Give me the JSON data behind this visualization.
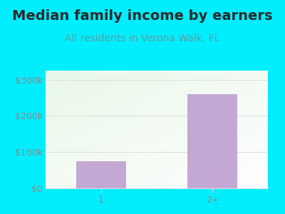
{
  "title": "Median family income by earners",
  "subtitle": "All residents in Verona Walk, FL",
  "categories": [
    "1",
    "2+"
  ],
  "values": [
    75000,
    260000
  ],
  "bar_color": "#c4a8d4",
  "outer_bg": "#00eeff",
  "title_color": "#2a2a2a",
  "subtitle_color": "#5a9ea0",
  "tick_label_color": "#888888",
  "grid_color": "#dddddd",
  "ylim": [
    0,
    325000
  ],
  "yticks": [
    0,
    100000,
    200000,
    300000
  ],
  "ytick_labels": [
    "$0",
    "$100k",
    "$200k",
    "$300k"
  ],
  "title_fontsize": 14,
  "subtitle_fontsize": 10,
  "tick_fontsize": 9,
  "plot_bg_color1": "#e8f5e8",
  "plot_bg_color2": "#f8fff8"
}
